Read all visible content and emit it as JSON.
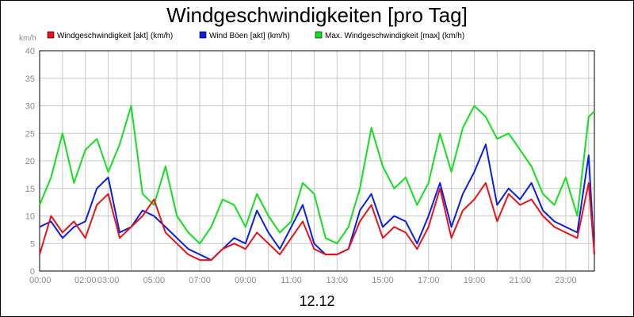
{
  "chart_data": {
    "type": "line",
    "title": "Windgeschwindigkeiten [pro Tag]",
    "ylabel": "km/h",
    "xlabel": "12.12",
    "ylim": [
      0,
      40
    ],
    "xlim": [
      0,
      24.25
    ],
    "y_ticks": [
      "0",
      "5",
      "10",
      "15",
      "20",
      "25",
      "30",
      "35",
      "40"
    ],
    "x_ticks": [
      "00:00",
      "02:00",
      "03:00",
      "05:00",
      "07:00",
      "09:00",
      "11:00",
      "13:00",
      "15:00",
      "17:00",
      "19:00",
      "21:00",
      "23:00"
    ],
    "grid": true,
    "legend_position": "top",
    "series": [
      {
        "name": "Windgeschwindigkeit [akt] (km/h)",
        "color": "#e8121a",
        "x": [
          0,
          0.5,
          1,
          1.5,
          2,
          2.5,
          3,
          3.5,
          4,
          4.5,
          5,
          5.5,
          6,
          6.5,
          7,
          7.5,
          8,
          8.5,
          9,
          9.5,
          10,
          10.5,
          11,
          11.5,
          12,
          12.5,
          13,
          13.5,
          14,
          14.5,
          15,
          15.5,
          16,
          16.5,
          17,
          17.5,
          18,
          18.5,
          19,
          19.5,
          20,
          20.5,
          21,
          21.5,
          22,
          22.5,
          23,
          23.5,
          24,
          24.25
        ],
        "y": [
          3,
          10,
          7,
          9,
          6,
          12,
          14,
          6,
          8,
          10,
          13,
          7,
          5,
          3,
          2,
          2,
          4,
          5,
          4,
          7,
          5,
          3,
          6,
          9,
          4,
          3,
          3,
          4,
          9,
          12,
          6,
          8,
          7,
          4,
          8,
          15,
          6,
          11,
          13,
          16,
          9,
          14,
          12,
          13,
          10,
          8,
          7,
          6,
          16,
          3
        ]
      },
      {
        "name": "Wind Böen [akt] (km/h)",
        "color": "#0a1ee6",
        "x": [
          0,
          0.5,
          1,
          1.5,
          2,
          2.5,
          3,
          3.5,
          4,
          4.5,
          5,
          5.5,
          6,
          6.5,
          7,
          7.5,
          8,
          8.5,
          9,
          9.5,
          10,
          10.5,
          11,
          11.5,
          12,
          12.5,
          13,
          13.5,
          14,
          14.5,
          15,
          15.5,
          16,
          16.5,
          17,
          17.5,
          18,
          18.5,
          19,
          19.5,
          20,
          20.5,
          21,
          21.5,
          22,
          22.5,
          23,
          23.5,
          24,
          24.25
        ],
        "y": [
          8,
          9,
          6,
          8,
          9,
          15,
          17,
          7,
          8,
          11,
          10,
          8,
          6,
          4,
          3,
          2,
          4,
          6,
          5,
          11,
          7,
          4,
          8,
          12,
          5,
          3,
          3,
          4,
          11,
          14,
          8,
          10,
          9,
          5,
          10,
          16,
          8,
          14,
          18,
          23,
          12,
          15,
          13,
          16,
          11,
          9,
          8,
          7,
          21,
          3
        ]
      },
      {
        "name": "Max. Windgeschwindigkeit [max] (km/h)",
        "color": "#12e01e",
        "x": [
          0,
          0.5,
          1,
          1.5,
          2,
          2.5,
          3,
          3.5,
          4,
          4.5,
          5,
          5.5,
          6,
          6.5,
          7,
          7.5,
          8,
          8.5,
          9,
          9.5,
          10,
          10.5,
          11,
          11.5,
          12,
          12.5,
          13,
          13.5,
          14,
          14.5,
          15,
          15.5,
          16,
          16.5,
          17,
          17.5,
          18,
          18.5,
          19,
          19.5,
          20,
          20.5,
          21,
          21.5,
          22,
          22.5,
          23,
          23.5,
          24,
          24.25
        ],
        "y": [
          12,
          17,
          25,
          16,
          22,
          24,
          18,
          23,
          30,
          14,
          12,
          19,
          10,
          7,
          5,
          8,
          13,
          12,
          8,
          14,
          10,
          7,
          9,
          16,
          14,
          6,
          5,
          8,
          15,
          26,
          19,
          15,
          17,
          12,
          16,
          25,
          18,
          26,
          30,
          28,
          24,
          25,
          22,
          19,
          14,
          12,
          17,
          10,
          28,
          29
        ]
      }
    ]
  }
}
